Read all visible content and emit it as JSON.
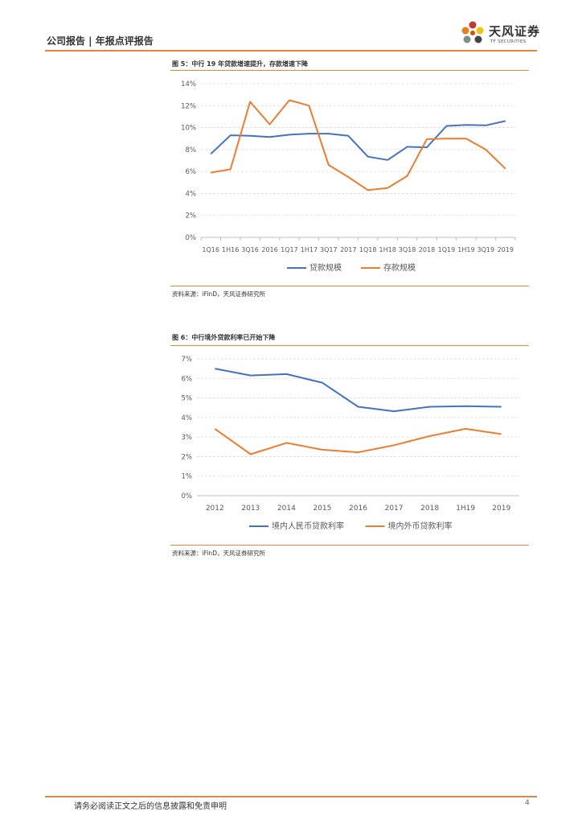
{
  "header": {
    "title": "公司报告 | 年报点评报告"
  },
  "logo": {
    "cn": "天风证券",
    "en": "TF SECURITIES"
  },
  "figures": [
    {
      "title": "图 5：中行 19 年贷款增速提升，存款增速下降",
      "source": "资料来源：iFinD，天风证券研究所"
    },
    {
      "title": "图 6：中行境外贷款利率已开始下降",
      "source": "资料来源：iFinD，天风证券研究所"
    }
  ],
  "chart_data": [
    {
      "type": "line",
      "categories": [
        "1Q16",
        "1H16",
        "3Q16",
        "2016",
        "1Q17",
        "1H17",
        "3Q17",
        "2017",
        "1Q18",
        "1H18",
        "3Q18",
        "2018",
        "1Q19",
        "1H19",
        "3Q19",
        "2019"
      ],
      "series": [
        {
          "name": "贷款规模",
          "color": "#4472c4",
          "values": [
            7.6,
            9.3,
            9.25,
            9.15,
            9.35,
            9.45,
            9.45,
            9.25,
            7.35,
            7.05,
            8.25,
            8.2,
            10.15,
            10.25,
            10.2,
            10.6
          ]
        },
        {
          "name": "存款规模",
          "color": "#ed7d31",
          "values": [
            5.9,
            6.2,
            12.35,
            10.3,
            12.5,
            12.0,
            6.6,
            5.5,
            4.3,
            4.5,
            5.6,
            8.95,
            9.0,
            9.0,
            8.0,
            6.25
          ]
        }
      ],
      "ylim": [
        0,
        14
      ],
      "yticks": [
        0,
        2,
        4,
        6,
        8,
        10,
        12,
        14
      ],
      "ytick_labels": [
        "0%",
        "2%",
        "4%",
        "6%",
        "8%",
        "10%",
        "12%",
        "14%"
      ],
      "legend": "bottom"
    },
    {
      "type": "line",
      "categories": [
        "2012",
        "2013",
        "2014",
        "2015",
        "2016",
        "2017",
        "2018",
        "1H19",
        "2019"
      ],
      "series": [
        {
          "name": "境内人民币贷款利率",
          "color": "#4472c4",
          "values": [
            6.5,
            6.15,
            6.22,
            5.78,
            4.55,
            4.32,
            4.55,
            4.58,
            4.55
          ]
        },
        {
          "name": "境内外币贷款利率",
          "color": "#ed7d31",
          "values": [
            3.42,
            2.12,
            2.7,
            2.35,
            2.22,
            2.58,
            3.05,
            3.42,
            3.15
          ]
        }
      ],
      "ylim": [
        0,
        7
      ],
      "yticks": [
        0,
        1,
        2,
        3,
        4,
        5,
        6,
        7
      ],
      "ytick_labels": [
        "0%",
        "1%",
        "2%",
        "3%",
        "4%",
        "5%",
        "6%",
        "7%"
      ],
      "legend": "bottom"
    }
  ],
  "footer": {
    "disclaimer": "请务必阅读正文之后的信息披露和免责申明",
    "page": "4"
  }
}
